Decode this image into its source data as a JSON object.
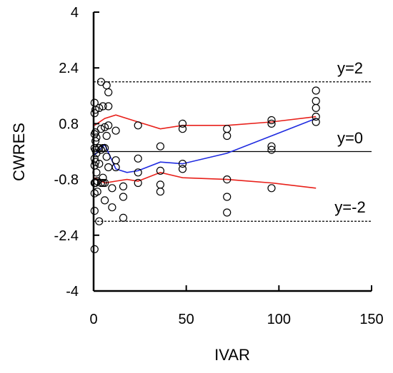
{
  "chart_data": {
    "type": "scatter",
    "title": "",
    "xlabel": "IVAR",
    "ylabel": "CWRES",
    "xlim": [
      0,
      150
    ],
    "ylim": [
      -4,
      4
    ],
    "x_ticks": [
      0,
      50,
      100,
      150
    ],
    "y_ticks": [
      4,
      2.4,
      0.8,
      -0.8,
      -2.4,
      -4
    ],
    "x_tick_labels": [
      "0",
      "50",
      "100",
      "150"
    ],
    "y_tick_labels": [
      "4",
      "2.4",
      "0.8",
      "-0.8",
      "-2.4",
      "-4"
    ],
    "grid": false,
    "reference_lines": [
      {
        "y": 2,
        "style": "dashed",
        "label": "y=2"
      },
      {
        "y": 0,
        "style": "solid",
        "label": "y=0"
      },
      {
        "y": -2,
        "style": "dashed",
        "label": "y=-2"
      }
    ],
    "colors": {
      "upper_lower": "#e8201a",
      "trend": "#1f2be0",
      "points": "#000000",
      "reference": "#000000"
    },
    "points": [
      [
        0.5,
        1.4
      ],
      [
        0.5,
        1.1
      ],
      [
        0.5,
        0.5
      ],
      [
        0.5,
        0.1
      ],
      [
        0.5,
        -0.2
      ],
      [
        0.5,
        -0.4
      ],
      [
        0.5,
        -0.9
      ],
      [
        0.5,
        -1.2
      ],
      [
        0.5,
        -1.7
      ],
      [
        0.5,
        -2.8
      ],
      [
        1,
        1.2
      ],
      [
        1,
        0.55
      ],
      [
        1,
        0.3
      ],
      [
        1,
        0.05
      ],
      [
        1,
        -0.3
      ],
      [
        1,
        -0.9
      ],
      [
        1.5,
        0.4
      ],
      [
        1.5,
        -0.05
      ],
      [
        1.5,
        -0.6
      ],
      [
        2,
        -0.85
      ],
      [
        2,
        -1.15
      ],
      [
        3,
        1.25
      ],
      [
        3,
        0.1
      ],
      [
        3,
        -0.35
      ],
      [
        3,
        -2.0
      ],
      [
        4,
        2.0
      ],
      [
        4,
        0.65
      ],
      [
        4,
        0.05
      ],
      [
        4,
        -0.9
      ],
      [
        5,
        1.3
      ],
      [
        5,
        0.1
      ],
      [
        5,
        -0.75
      ],
      [
        5,
        -0.9
      ],
      [
        6,
        0.7
      ],
      [
        6,
        0.1
      ],
      [
        6,
        -0.9
      ],
      [
        6,
        -1.4
      ],
      [
        7,
        1.9
      ],
      [
        7,
        0.45
      ],
      [
        7,
        -0.15
      ],
      [
        8,
        1.7
      ],
      [
        8,
        1.3
      ],
      [
        8,
        0.75
      ],
      [
        8,
        -0.45
      ],
      [
        10,
        -1.05
      ],
      [
        10,
        -1.6
      ],
      [
        12,
        0.6
      ],
      [
        12,
        -0.25
      ],
      [
        12,
        -0.45
      ],
      [
        16,
        -1.0
      ],
      [
        16,
        -1.9
      ],
      [
        16,
        -1.3
      ],
      [
        24,
        0.75
      ],
      [
        24,
        -0.2
      ],
      [
        24,
        -0.6
      ],
      [
        24,
        -0.9
      ],
      [
        36,
        0.15
      ],
      [
        36,
        -0.55
      ],
      [
        36,
        -0.95
      ],
      [
        36,
        -1.15
      ],
      [
        48,
        0.8
      ],
      [
        48,
        0.65
      ],
      [
        48,
        -0.35
      ],
      [
        48,
        -0.5
      ],
      [
        72,
        0.65
      ],
      [
        72,
        0.45
      ],
      [
        72,
        -0.8
      ],
      [
        72,
        -1.3
      ],
      [
        72,
        -1.75
      ],
      [
        96,
        0.9
      ],
      [
        96,
        0.8
      ],
      [
        96,
        0.15
      ],
      [
        96,
        0.05
      ],
      [
        96,
        -1.05
      ],
      [
        120,
        1.75
      ],
      [
        120,
        1.45
      ],
      [
        120,
        1.25
      ],
      [
        120,
        1.0
      ],
      [
        120,
        0.85
      ]
    ],
    "series": [
      {
        "values": [
          [
            0.5,
            0.75
          ],
          [
            6,
            0.95
          ],
          [
            12,
            1.05
          ],
          [
            24,
            0.85
          ],
          [
            36,
            0.65
          ],
          [
            48,
            0.75
          ],
          [
            72,
            0.75
          ],
          [
            96,
            0.85
          ],
          [
            120,
            1.0
          ]
        ]
      },
      {
        "values": [
          [
            0.5,
            -0.1
          ],
          [
            6,
            0.2
          ],
          [
            12,
            -0.5
          ],
          [
            18,
            -0.6
          ],
          [
            24,
            -0.55
          ],
          [
            36,
            -0.3
          ],
          [
            48,
            -0.35
          ],
          [
            72,
            -0.05
          ],
          [
            96,
            0.45
          ],
          [
            120,
            0.95
          ]
        ]
      },
      {
        "values": [
          [
            0.5,
            -0.75
          ],
          [
            6,
            -0.9
          ],
          [
            12,
            -0.85
          ],
          [
            18,
            -0.8
          ],
          [
            24,
            -0.85
          ],
          [
            36,
            -0.6
          ],
          [
            48,
            -0.75
          ],
          [
            72,
            -0.8
          ],
          [
            96,
            -0.9
          ],
          [
            120,
            -1.05
          ]
        ]
      }
    ]
  }
}
